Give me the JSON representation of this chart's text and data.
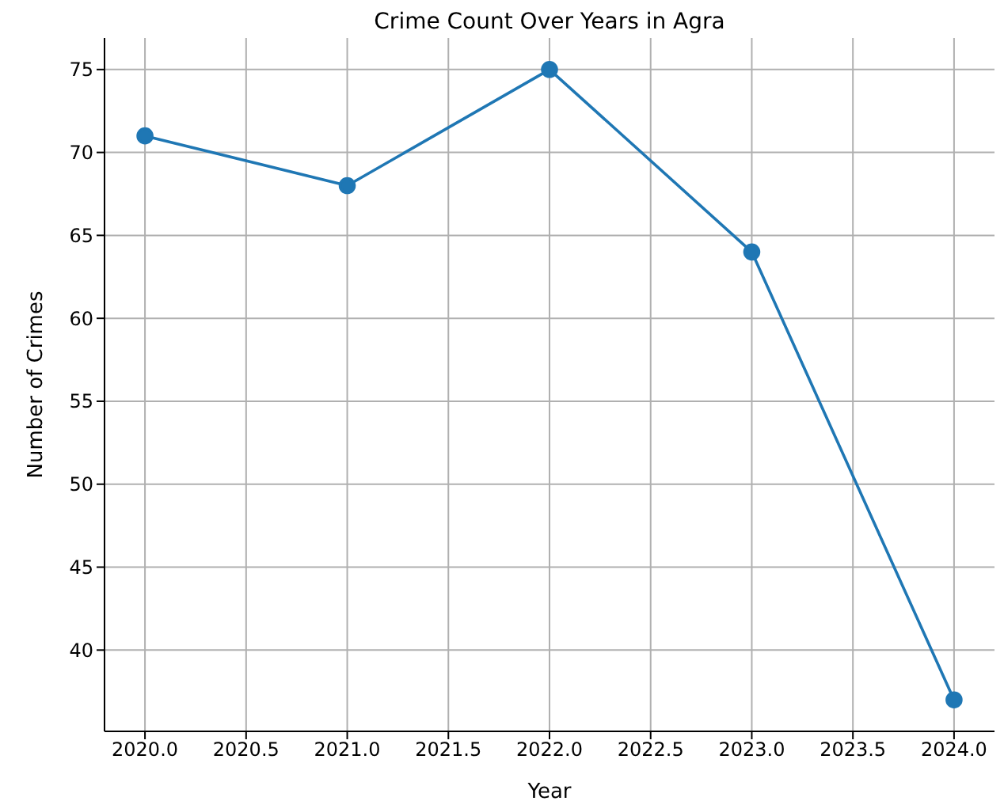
{
  "chart_data": {
    "type": "line",
    "title": "Crime Count Over Years in Agra",
    "xlabel": "Year",
    "ylabel": "Number of Crimes",
    "x": [
      2020,
      2021,
      2022,
      2023,
      2024
    ],
    "series": [
      {
        "color": "#1f77b4",
        "values": [
          71,
          68,
          75,
          64,
          37
        ]
      }
    ],
    "xlim": [
      2019.8,
      2024.2
    ],
    "xticks": [
      {
        "value": 2020,
        "label": "2020.0"
      },
      {
        "value": 2020.5,
        "label": "2020.5"
      },
      {
        "value": 2021,
        "label": "2021.0"
      },
      {
        "value": 2021.5,
        "label": "2021.5"
      },
      {
        "value": 2022,
        "label": "2022.0"
      },
      {
        "value": 2022.5,
        "label": "2022.5"
      },
      {
        "value": 2023,
        "label": "2023.0"
      },
      {
        "value": 2023.5,
        "label": "2023.5"
      },
      {
        "value": 2024,
        "label": "2024.0"
      }
    ],
    "ylim": [
      35.1,
      76.9
    ],
    "yticks": [
      40,
      45,
      50,
      55,
      60,
      65,
      70,
      75
    ],
    "grid": true,
    "marker": "circle",
    "line_style": "solid"
  }
}
